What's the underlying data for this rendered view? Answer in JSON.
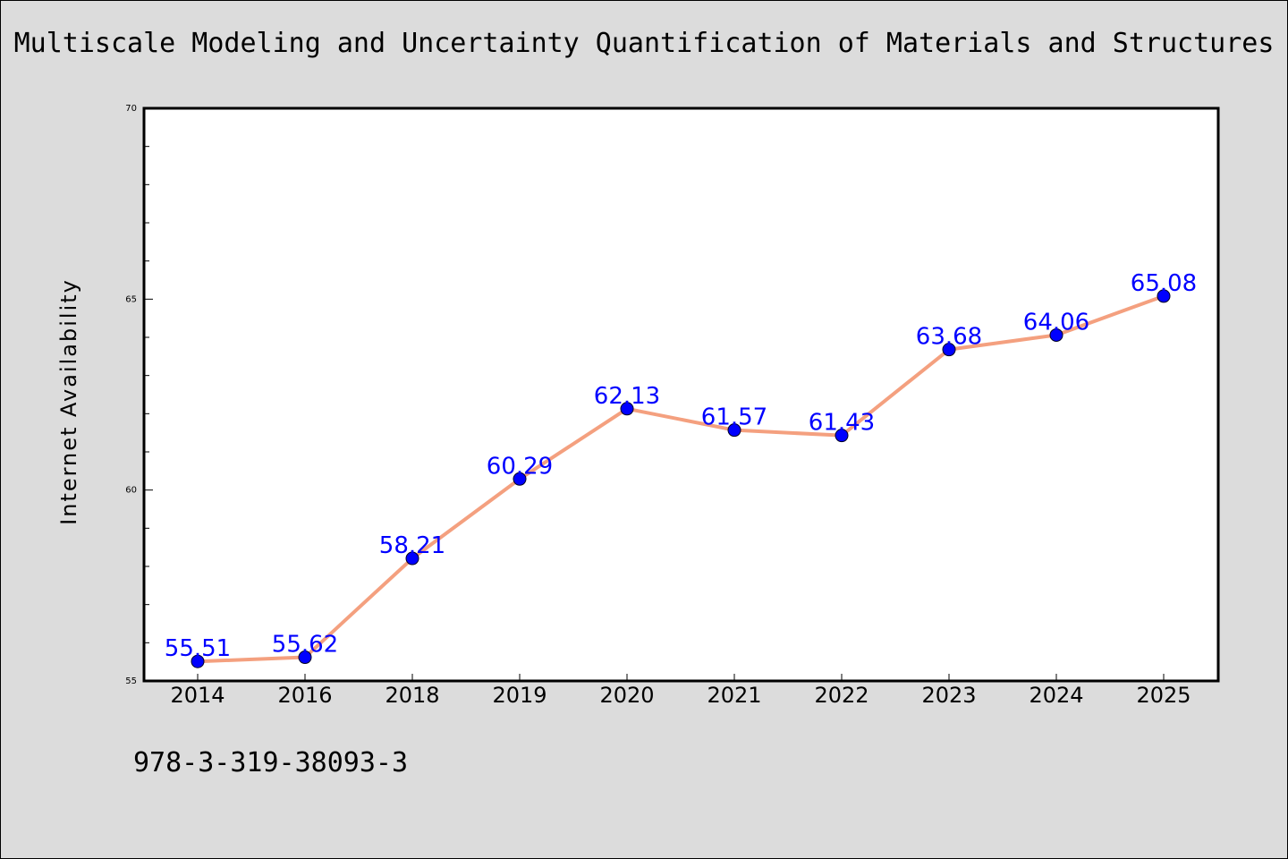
{
  "isbn": "978-3-319-38093-3",
  "colors": {
    "background": "#dcdcdc",
    "plot_background": "#ffffff",
    "line": "#f4a07f",
    "marker": "#0000ff",
    "label": "#0000ff"
  },
  "chart_data": {
    "type": "line",
    "title": "Multiscale Modeling and Uncertainty Quantification of Materials and Structures",
    "xlabel": "",
    "ylabel": "Internet Availability",
    "categories": [
      "2014",
      "2016",
      "2018",
      "2019",
      "2020",
      "2021",
      "2022",
      "2023",
      "2024",
      "2025"
    ],
    "values": [
      55.51,
      55.62,
      58.21,
      60.29,
      62.13,
      61.57,
      61.43,
      63.68,
      64.06,
      65.08
    ],
    "data_labels": [
      "55.51",
      "55.62",
      "58.21",
      "60.29",
      "62.13",
      "61.57",
      "61.43",
      "63.68",
      "64.06",
      "65.08"
    ],
    "ylim": [
      55,
      70
    ],
    "yticks": [
      "55",
      "60",
      "65",
      "70"
    ],
    "grid": false,
    "legend": "none"
  }
}
